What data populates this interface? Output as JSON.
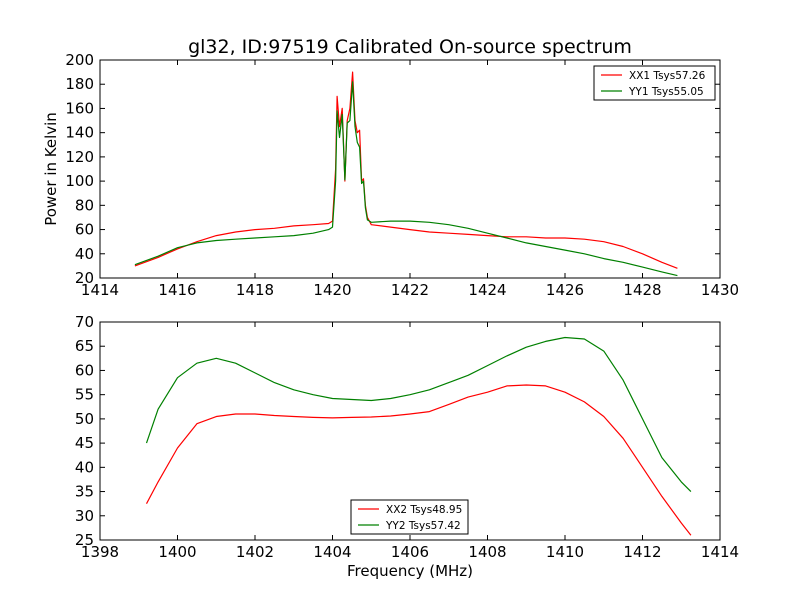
{
  "title": "gl32, ID:97519 Calibrated On-source spectrum",
  "colors": {
    "red": "#ff0000",
    "green": "#008000"
  },
  "chart_data": [
    {
      "type": "line",
      "ylabel": "Power in Kelvin",
      "xlabel": "",
      "xlim": [
        1414,
        1430
      ],
      "ylim": [
        20,
        200
      ],
      "xticks": [
        "1414",
        "1416",
        "1418",
        "1420",
        "1422",
        "1424",
        "1426",
        "1428",
        "1430"
      ],
      "yticks": [
        "20",
        "40",
        "60",
        "80",
        "100",
        "120",
        "140",
        "160",
        "180",
        "200"
      ],
      "legend_position": "top-right",
      "series": [
        {
          "name": "XX1 Tsys57.26",
          "color": "#ff0000",
          "x": [
            1414.9,
            1415.5,
            1416.0,
            1416.5,
            1417.0,
            1417.5,
            1418.0,
            1418.5,
            1419.0,
            1419.5,
            1419.9,
            1420.0,
            1420.08,
            1420.12,
            1420.18,
            1420.25,
            1420.32,
            1420.38,
            1420.45,
            1420.52,
            1420.58,
            1420.64,
            1420.7,
            1420.75,
            1420.8,
            1420.85,
            1420.9,
            1421.0,
            1421.5,
            1422.0,
            1422.5,
            1423.0,
            1423.5,
            1424.0,
            1424.5,
            1425.0,
            1425.5,
            1426.0,
            1426.5,
            1427.0,
            1427.5,
            1428.0,
            1428.5,
            1428.9
          ],
          "y": [
            30,
            37,
            44,
            50,
            55,
            58,
            60,
            61,
            63,
            64,
            65,
            67,
            110,
            170,
            145,
            160,
            100,
            150,
            160,
            190,
            150,
            140,
            142,
            100,
            102,
            80,
            70,
            64,
            62,
            60,
            58,
            57,
            56,
            55,
            54,
            54,
            53,
            53,
            52,
            50,
            46,
            40,
            33,
            28
          ]
        },
        {
          "name": "YY1 Tsys55.05",
          "color": "#008000",
          "x": [
            1414.9,
            1415.5,
            1416.0,
            1416.5,
            1417.0,
            1417.5,
            1418.0,
            1418.5,
            1419.0,
            1419.5,
            1419.9,
            1420.0,
            1420.08,
            1420.12,
            1420.18,
            1420.25,
            1420.32,
            1420.38,
            1420.45,
            1420.52,
            1420.58,
            1420.64,
            1420.7,
            1420.75,
            1420.8,
            1420.85,
            1420.9,
            1421.0,
            1421.5,
            1422.0,
            1422.5,
            1423.0,
            1423.5,
            1424.0,
            1424.5,
            1425.0,
            1425.5,
            1426.0,
            1426.5,
            1427.0,
            1427.5,
            1428.0,
            1428.5,
            1428.9
          ],
          "y": [
            31,
            38,
            45,
            49,
            51,
            52,
            53,
            54,
            55,
            57,
            60,
            62,
            100,
            158,
            136,
            155,
            101,
            148,
            150,
            182,
            145,
            132,
            128,
            98,
            100,
            78,
            68,
            66,
            67,
            67,
            66,
            64,
            61,
            57,
            53,
            49,
            46,
            43,
            40,
            36,
            33,
            29,
            25,
            22
          ]
        }
      ]
    },
    {
      "type": "line",
      "ylabel": "",
      "xlabel": "Frequency (MHz)",
      "xlim": [
        1398,
        1414
      ],
      "ylim": [
        25,
        70
      ],
      "xticks": [
        "1398",
        "1400",
        "1402",
        "1404",
        "1406",
        "1408",
        "1410",
        "1412",
        "1414"
      ],
      "yticks": [
        "25",
        "30",
        "35",
        "40",
        "45",
        "50",
        "55",
        "60",
        "65",
        "70"
      ],
      "legend_position": "bottom-center",
      "series": [
        {
          "name": "XX2 Tsys48.95",
          "color": "#ff0000",
          "x": [
            1399.2,
            1399.5,
            1400.0,
            1400.5,
            1401.0,
            1401.5,
            1402.0,
            1402.5,
            1403.0,
            1403.5,
            1404.0,
            1404.5,
            1405.0,
            1405.5,
            1406.0,
            1406.5,
            1407.0,
            1407.5,
            1408.0,
            1408.5,
            1409.0,
            1409.5,
            1410.0,
            1410.5,
            1411.0,
            1411.5,
            1412.0,
            1412.5,
            1413.0,
            1413.25
          ],
          "y": [
            32.5,
            37,
            44,
            49,
            50.5,
            51,
            51,
            50.7,
            50.5,
            50.3,
            50.2,
            50.3,
            50.4,
            50.6,
            51,
            51.5,
            53,
            54.5,
            55.5,
            56.8,
            57,
            56.8,
            55.5,
            53.5,
            50.5,
            46,
            40,
            34,
            28.5,
            26
          ]
        },
        {
          "name": "YY2 Tsys57.42",
          "color": "#008000",
          "x": [
            1399.2,
            1399.5,
            1400.0,
            1400.5,
            1401.0,
            1401.5,
            1402.0,
            1402.5,
            1403.0,
            1403.5,
            1404.0,
            1404.5,
            1405.0,
            1405.5,
            1406.0,
            1406.5,
            1407.0,
            1407.5,
            1408.0,
            1408.5,
            1409.0,
            1409.5,
            1410.0,
            1410.5,
            1411.0,
            1411.5,
            1412.0,
            1412.5,
            1413.0,
            1413.25
          ],
          "y": [
            45,
            52,
            58.5,
            61.5,
            62.5,
            61.5,
            59.5,
            57.5,
            56,
            55,
            54.2,
            54,
            53.8,
            54.2,
            55,
            56,
            57.5,
            59,
            61,
            63,
            64.8,
            66,
            66.8,
            66.5,
            64,
            58,
            50,
            42,
            37,
            35
          ]
        }
      ]
    }
  ]
}
